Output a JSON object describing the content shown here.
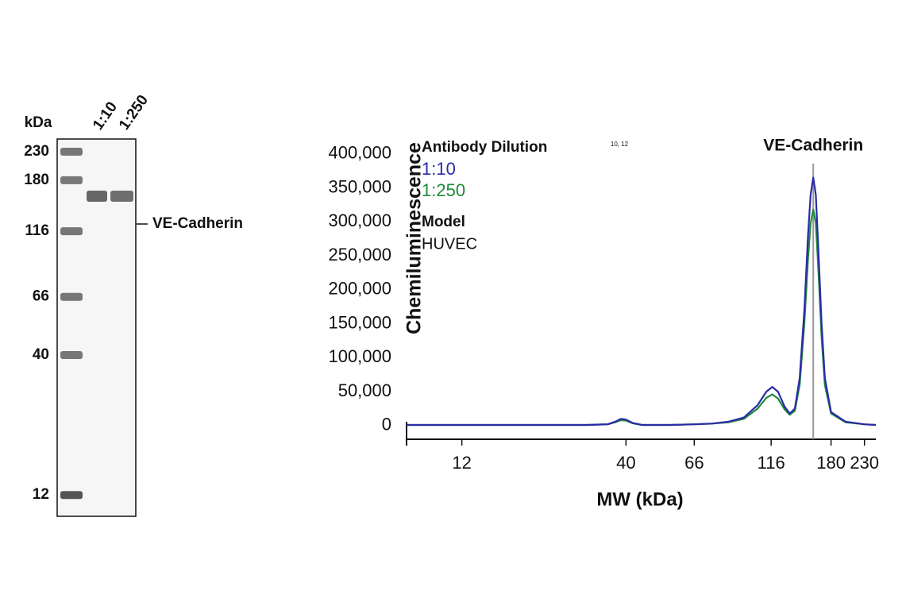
{
  "gel": {
    "unit_label": "kDa",
    "markers": [
      230,
      180,
      116,
      66,
      40,
      12
    ],
    "lanes": [
      "1:10",
      "1:250"
    ],
    "band_label": "VE-Cadherin"
  },
  "chart_data": {
    "type": "line",
    "ylabel": "Chemiluminescence",
    "xlabel": "MW (kDa)",
    "xscale": "log",
    "annotations": [
      "10, 12"
    ],
    "legend_title": "Antibody Dilution",
    "model_title": "Model",
    "model": "HUVEC",
    "marker": {
      "label": "VE-Cadherin",
      "x": 158,
      "color": "#999999"
    },
    "xlim": [
      8,
      250
    ],
    "xticks": [
      12,
      40,
      66,
      116,
      180,
      230
    ],
    "ylim": [
      -20000,
      416000
    ],
    "yticks": [
      0,
      {
        "value": 50000,
        "label": "50,000"
      },
      {
        "value": 100000,
        "label": "100,000"
      },
      {
        "value": 150000,
        "label": "150,000"
      },
      {
        "value": 200000,
        "label": "200,000"
      },
      {
        "value": 250000,
        "label": "250,000"
      },
      {
        "value": 300000,
        "label": "300,000"
      },
      {
        "value": 350000,
        "label": "350,000"
      },
      {
        "value": 400000,
        "label": "400,000"
      }
    ],
    "x": [
      8,
      20,
      30,
      35,
      37,
      38.5,
      40,
      42,
      45,
      55,
      66,
      75,
      85,
      95,
      105,
      112,
      117,
      122,
      128,
      133,
      138,
      143,
      148,
      152,
      155,
      158,
      161,
      164,
      168,
      172,
      180,
      200,
      230,
      250
    ],
    "series": [
      {
        "name": "1:10",
        "color": "#2a2aa8",
        "values": [
          1000,
          1000,
          1000,
          2000,
          6000,
          10000,
          9000,
          4000,
          1000,
          1000,
          2000,
          3000,
          6000,
          12000,
          30000,
          50000,
          57000,
          50000,
          28000,
          18000,
          25000,
          70000,
          170000,
          280000,
          340000,
          365000,
          340000,
          260000,
          150000,
          70000,
          20000,
          6000,
          2000,
          1000
        ]
      },
      {
        "name": "1:250",
        "color": "#1f8a3c",
        "values": [
          1000,
          1000,
          1000,
          2000,
          5000,
          8000,
          7500,
          3500,
          1000,
          1000,
          2000,
          3000,
          5000,
          10000,
          25000,
          41000,
          46000,
          40000,
          24000,
          16000,
          22000,
          60000,
          150000,
          245000,
          298000,
          318000,
          298000,
          230000,
          130000,
          60000,
          18000,
          5000,
          2000,
          1000
        ]
      }
    ]
  }
}
